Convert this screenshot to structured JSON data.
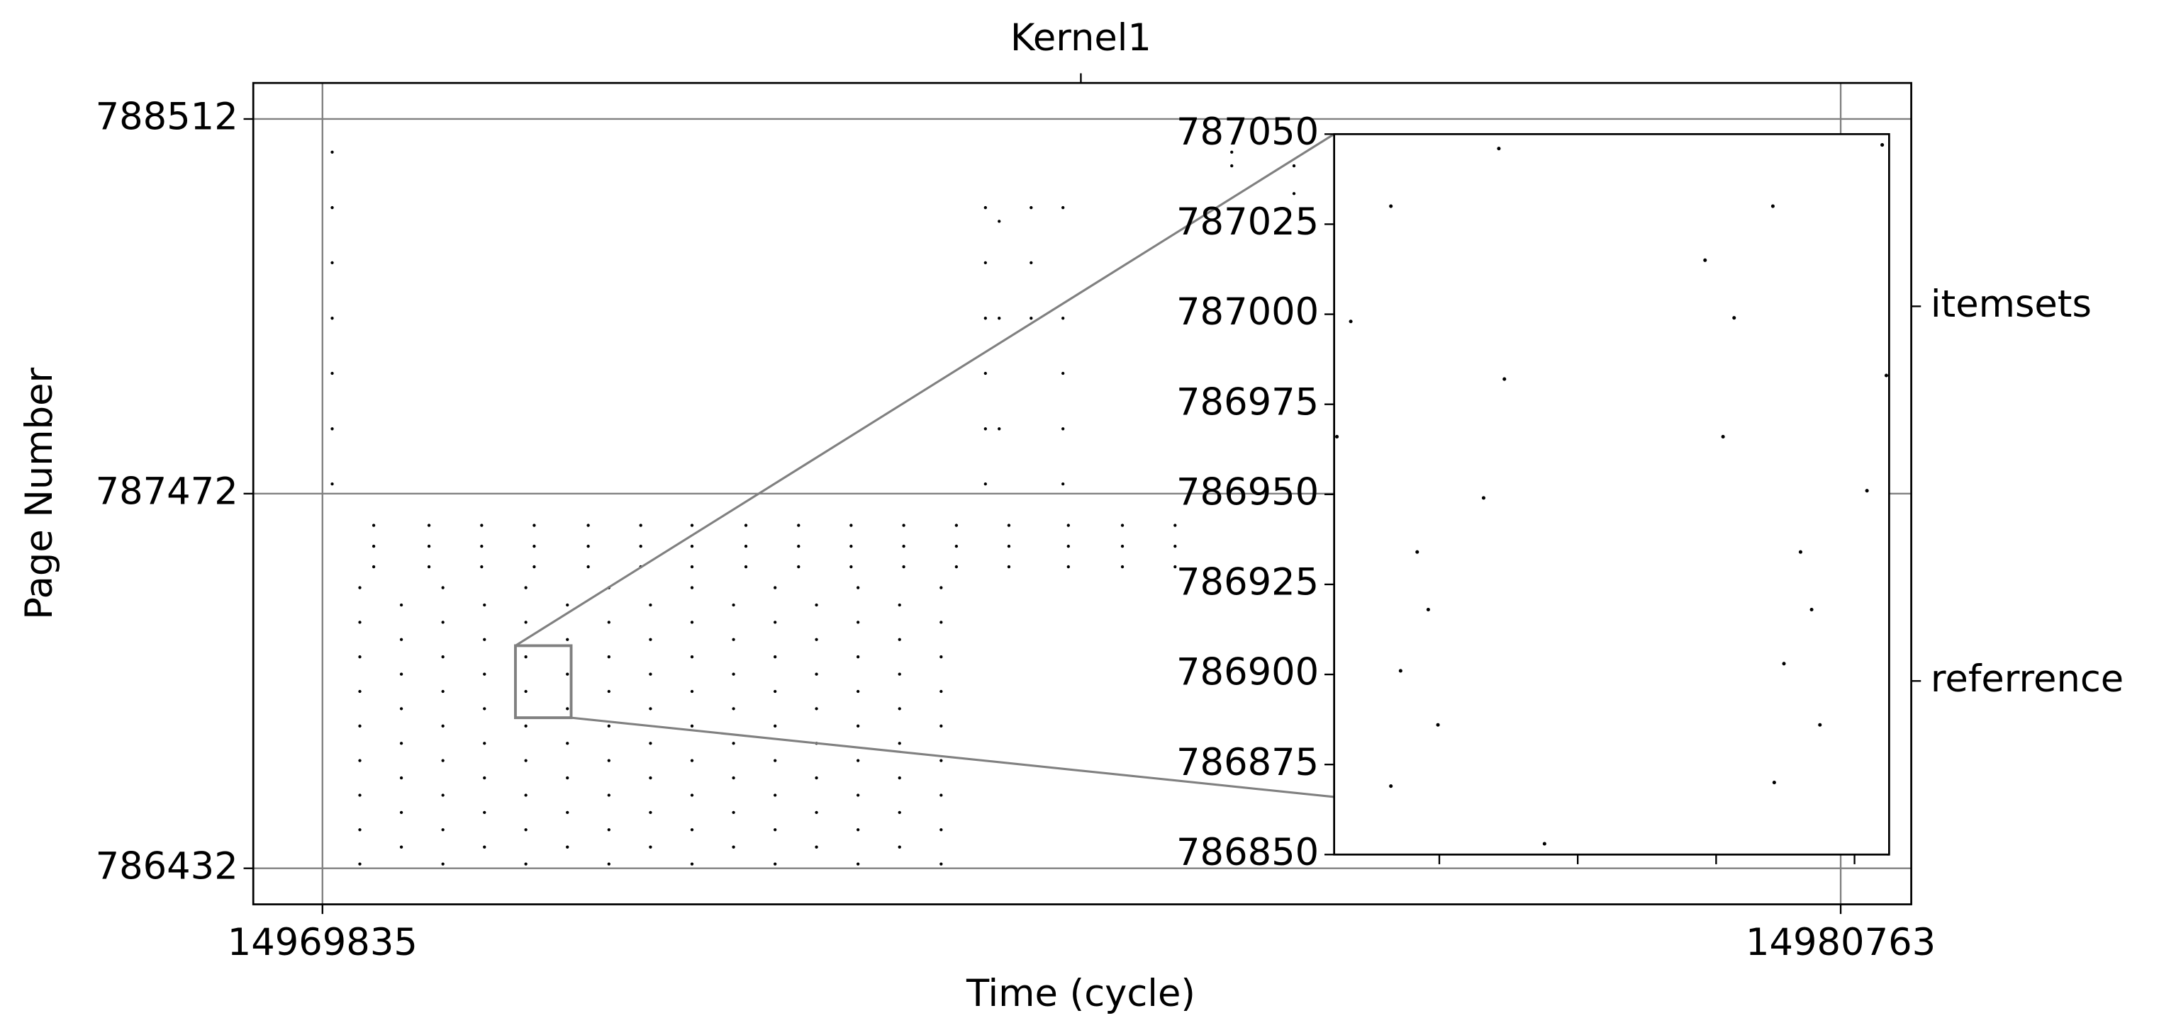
{
  "chart_data": [
    {
      "type": "scatter",
      "xlabel": "Time (cycle)",
      "ylabel": "Page Number",
      "xlim": [
        14969337,
        14981271
      ],
      "ylim": [
        786332,
        788612
      ],
      "xticks": [
        14969835,
        14980763
      ],
      "yticks": [
        786432,
        787472,
        788512
      ],
      "x2ticks": [
        {
          "value": 14975294,
          "label": "Kernel1"
        }
      ],
      "y2lim": [
        786332,
        788612
      ],
      "y2ticks": [
        {
          "value": 787992,
          "label": "itemsets"
        },
        {
          "value": 786952,
          "label": "referrence"
        }
      ],
      "grid": true,
      "color": "#000000",
      "x": [
        14969905,
        14969905,
        14969905,
        14969905,
        14969905,
        14969905,
        14969905,
        14974607,
        14974607,
        14974607,
        14974607,
        14974607,
        14974607,
        14974706,
        14974706,
        14974706,
        14974936,
        14974936,
        14974936,
        14975165,
        14975165,
        14975165,
        14975165,
        14975165,
        14976380,
        14976380,
        14976828,
        14976828,
        14970204,
        14970204,
        14970204,
        14970602,
        14970602,
        14970602,
        14970981,
        14970981,
        14970981,
        14971359,
        14971359,
        14971359,
        14971748,
        14971748,
        14971748,
        14972126,
        14972126,
        14972126,
        14972495,
        14972495,
        14972495,
        14972883,
        14972883,
        14972883,
        14973262,
        14973262,
        14973262,
        14973640,
        14973640,
        14973640,
        14974019,
        14974019,
        14974019,
        14974398,
        14974398,
        14974398,
        14974776,
        14974776,
        14974776,
        14975204,
        14975204,
        14975204,
        14975593,
        14975593,
        14975593,
        14975972,
        14975972,
        14975972,
        14970104,
        14970104,
        14970104,
        14970104,
        14970104,
        14970104,
        14970104,
        14970104,
        14970104,
        14970403,
        14970403,
        14970403,
        14970403,
        14970403,
        14970403,
        14970403,
        14970403,
        14970702,
        14970702,
        14970702,
        14970702,
        14970702,
        14970702,
        14970702,
        14970702,
        14970702,
        14971001,
        14971001,
        14971001,
        14971001,
        14971001,
        14971001,
        14971001,
        14971001,
        14971299,
        14971299,
        14971299,
        14971299,
        14971299,
        14971299,
        14971299,
        14971299,
        14971299,
        14971598,
        14971598,
        14971598,
        14971598,
        14971598,
        14971598,
        14971598,
        14971598,
        14971897,
        14971897,
        14971897,
        14971897,
        14971897,
        14971897,
        14971897,
        14971897,
        14971897,
        14972196,
        14972196,
        14972196,
        14972196,
        14972196,
        14972196,
        14972196,
        14972196,
        14972495,
        14972495,
        14972495,
        14972495,
        14972495,
        14972495,
        14972495,
        14972495,
        14972495,
        14972794,
        14972794,
        14972794,
        14972794,
        14972794,
        14972794,
        14972794,
        14972794,
        14973093,
        14973093,
        14973093,
        14973093,
        14973093,
        14973093,
        14973093,
        14973093,
        14973093,
        14973391,
        14973391,
        14973391,
        14973391,
        14973391,
        14973391,
        14973391,
        14973391,
        14973690,
        14973690,
        14973690,
        14973690,
        14973690,
        14973690,
        14973690,
        14973690,
        14973690,
        14973989,
        14973989,
        14973989,
        14973989,
        14973989,
        14973989,
        14973989,
        14973989,
        14974288,
        14974288,
        14974288,
        14974288,
        14974288,
        14974288,
        14974288,
        14974288,
        14974288
      ],
      "values": [
        788420,
        788266,
        788113,
        787959,
        787806,
        787652,
        787499,
        788266,
        788113,
        787959,
        787806,
        787652,
        787499,
        788228,
        787959,
        787652,
        788266,
        788113,
        787959,
        788266,
        787959,
        787806,
        787652,
        787499,
        788420,
        788382,
        788382,
        788305,
        787384,
        787326,
        787269,
        787384,
        787326,
        787269,
        787384,
        787326,
        787269,
        787384,
        787326,
        787269,
        787384,
        787326,
        787269,
        787384,
        787326,
        787269,
        787384,
        787326,
        787269,
        787384,
        787326,
        787269,
        787384,
        787326,
        787269,
        787384,
        787326,
        787269,
        787384,
        787326,
        787269,
        787384,
        787326,
        787269,
        787384,
        787326,
        787269,
        787384,
        787326,
        787269,
        787384,
        787326,
        787269,
        787384,
        787326,
        787269,
        787211,
        787115,
        787019,
        786923,
        786827,
        786731,
        786635,
        786539,
        786444,
        787163,
        787067,
        786971,
        786875,
        786779,
        786683,
        786587,
        786491,
        787211,
        787115,
        787019,
        786923,
        786827,
        786731,
        786635,
        786539,
        786444,
        787163,
        787067,
        786971,
        786875,
        786779,
        786683,
        786587,
        786491,
        787211,
        787115,
        787019,
        786923,
        786827,
        786731,
        786635,
        786539,
        786444,
        787163,
        787067,
        786971,
        786875,
        786779,
        786683,
        786587,
        786491,
        787211,
        787115,
        787019,
        786923,
        786827,
        786731,
        786635,
        786539,
        786444,
        787163,
        787067,
        786971,
        786875,
        786779,
        786683,
        786587,
        786491,
        787211,
        787115,
        787019,
        786923,
        786827,
        786731,
        786635,
        786539,
        786444,
        787163,
        787067,
        786971,
        786875,
        786779,
        786683,
        786587,
        786491,
        787211,
        787115,
        787019,
        786923,
        786827,
        786731,
        786635,
        786539,
        786444,
        787163,
        787067,
        786971,
        786875,
        786779,
        786683,
        786587,
        786491,
        787211,
        787115,
        787019,
        786923,
        786827,
        786731,
        786635,
        786539,
        786444,
        787163,
        787067,
        786971,
        786875,
        786779,
        786683,
        786587,
        786491,
        787211,
        787115,
        787019,
        786923,
        786827,
        786731,
        786635,
        786539,
        786444
      ]
    },
    {
      "type": "scatter",
      "xlim": [
        14971224,
        14971625
      ],
      "ylim": [
        786850,
        787050
      ],
      "xticks": [
        14971300,
        14971400,
        14971500,
        14971600
      ],
      "yticks": [
        786850,
        786875,
        786900,
        786925,
        786950,
        786975,
        787000,
        787025,
        787050
      ],
      "color": "#000000",
      "x": [
        14971343,
        14971620,
        14971265,
        14971541,
        14971492,
        14971236,
        14971513,
        14971347,
        14971623,
        14971226,
        14971505,
        14971332,
        14971609,
        14971284,
        14971561,
        14971292,
        14971569,
        14971272,
        14971549,
        14971299,
        14971575,
        14971265,
        14971542,
        14971376
      ],
      "values": [
        787046,
        787047,
        787030,
        787030,
        787015,
        786998,
        786999,
        786982,
        786983,
        786966,
        786966,
        786949,
        786951,
        786934,
        786934,
        786918,
        786918,
        786901,
        786903,
        786886,
        786886,
        786869,
        786870,
        786853
      ]
    }
  ]
}
